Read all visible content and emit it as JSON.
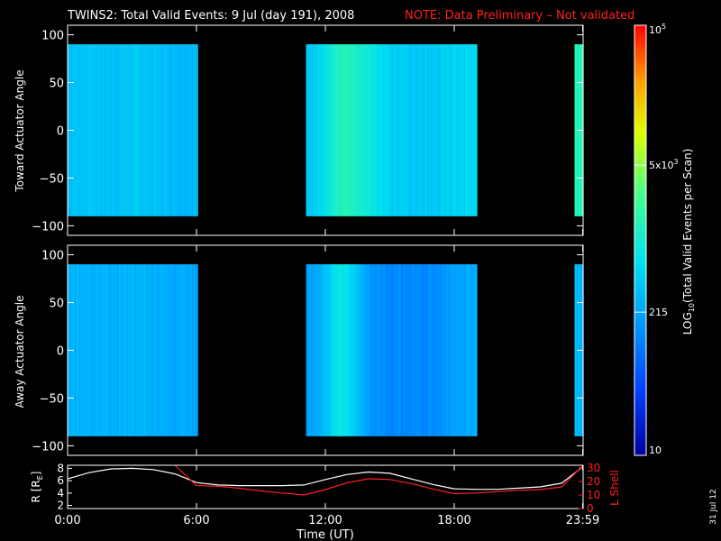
{
  "header": {
    "title": "TWINS2: Total Valid Events:  9 Jul (day 191), 2008",
    "note": "NOTE: Data Preliminary – Not validated",
    "note_color": "#ff2020"
  },
  "footer": {
    "stamp": "31 Jul 12"
  },
  "chart_data": [
    {
      "type": "heatmap",
      "title": "",
      "ylabel": "Toward Actuator Angle",
      "ylim": [
        -110,
        110
      ],
      "y_ticks": [
        "100",
        "50",
        "0",
        "−50",
        "−100"
      ],
      "y_tick_values": [
        100,
        50,
        0,
        -50,
        -100
      ],
      "xlim_hours": [
        0,
        24
      ],
      "data_y_range": [
        -90,
        90
      ],
      "data_blocks_hours": [
        [
          0,
          6.05
        ],
        [
          11.1,
          19.05
        ],
        [
          23.6,
          24
        ]
      ],
      "profile": {
        "hours": [
          0,
          1,
          2,
          3,
          4,
          5,
          6,
          11.1,
          12,
          12.5,
          13,
          14,
          15,
          16,
          17,
          18,
          19,
          23.6,
          24
        ],
        "log10_counts": [
          2.55,
          2.6,
          2.55,
          2.6,
          2.55,
          2.5,
          2.5,
          2.6,
          2.8,
          3.05,
          3.15,
          2.95,
          2.7,
          2.6,
          2.6,
          2.7,
          2.8,
          3.1,
          3.15
        ]
      }
    },
    {
      "type": "heatmap",
      "title": "",
      "ylabel": "Away Actuator Angle",
      "ylim": [
        -110,
        110
      ],
      "y_ticks": [
        "100",
        "50",
        "0",
        "−50",
        "−100"
      ],
      "y_tick_values": [
        100,
        50,
        0,
        -50,
        -100
      ],
      "xlim_hours": [
        0,
        24
      ],
      "data_y_range": [
        -90,
        90
      ],
      "data_blocks_hours": [
        [
          0,
          6.05
        ],
        [
          11.1,
          19.05
        ],
        [
          23.6,
          24
        ]
      ],
      "profile": {
        "hours": [
          0,
          1,
          2,
          3,
          4,
          5,
          6,
          11.1,
          12,
          12.5,
          13,
          14,
          15,
          16,
          17,
          18,
          19,
          23.6,
          24
        ],
        "log10_counts": [
          2.45,
          2.45,
          2.4,
          2.45,
          2.4,
          2.35,
          2.35,
          2.3,
          2.5,
          2.9,
          2.85,
          2.25,
          2.1,
          2.1,
          2.15,
          2.3,
          2.4,
          2.45,
          2.5
        ]
      }
    },
    {
      "type": "line",
      "title": "",
      "ylabel_left": "R [R",
      "ylabel_left_sub": "E",
      "ylabel_left_end": "]",
      "ylabel_right": "L Shell",
      "y_ticks_left": [
        "8",
        "6",
        "4",
        "2"
      ],
      "y_tick_values_left": [
        8,
        6,
        4,
        2
      ],
      "ylim_left": [
        1.5,
        8.5
      ],
      "y_ticks_right": [
        "30",
        "20",
        "10",
        "0"
      ],
      "y_tick_values_right": [
        30,
        20,
        10,
        0
      ],
      "ylim_right": [
        0,
        32
      ],
      "right_axis_color": "#ff2020",
      "xlabel": "Time (UT)",
      "x_ticks": [
        "0:00",
        "6:00",
        "12:00",
        "18:00",
        "23:59"
      ],
      "x_tick_values": [
        0,
        6,
        12,
        18,
        23.98
      ],
      "series": [
        {
          "axis": "left",
          "color": "#ffffff",
          "x": [
            0,
            1,
            2,
            3,
            4,
            5,
            6,
            7,
            8,
            9,
            10,
            11,
            12,
            13,
            14,
            15,
            16,
            17,
            18,
            19,
            20,
            21,
            22,
            23,
            24
          ],
          "y": [
            6.3,
            7.3,
            7.9,
            8.0,
            7.8,
            7.1,
            5.7,
            5.3,
            5.2,
            5.2,
            5.2,
            5.3,
            6.2,
            7.0,
            7.4,
            7.2,
            6.3,
            5.4,
            4.7,
            4.6,
            4.6,
            4.8,
            5.0,
            5.6,
            8.3
          ]
        },
        {
          "axis": "right",
          "color": "#ff2020",
          "x": [
            5.0,
            6.0,
            7,
            8,
            9,
            10,
            11,
            12,
            13,
            14,
            15,
            16,
            17,
            18,
            19,
            20,
            21,
            22,
            23,
            24
          ],
          "y": [
            32,
            17,
            16.5,
            15,
            13,
            11.5,
            10,
            14,
            19,
            22,
            21.5,
            18.5,
            14.5,
            11,
            11.5,
            12.5,
            13.5,
            14,
            16,
            32
          ]
        }
      ]
    }
  ],
  "colorbar": {
    "label": "LOG",
    "label_sub": "10",
    "label_end": "(Total Valid  Events per Scan)",
    "log10_range": [
      1,
      5
    ],
    "ticks": [
      {
        "value": 5,
        "label": "10",
        "sup": "5"
      },
      {
        "value": 3.699,
        "label": "5x10",
        "sup": "3"
      },
      {
        "value": 2.332,
        "label": "215",
        "sup": ""
      },
      {
        "value": 1,
        "label": "10",
        "sup": ""
      }
    ]
  }
}
